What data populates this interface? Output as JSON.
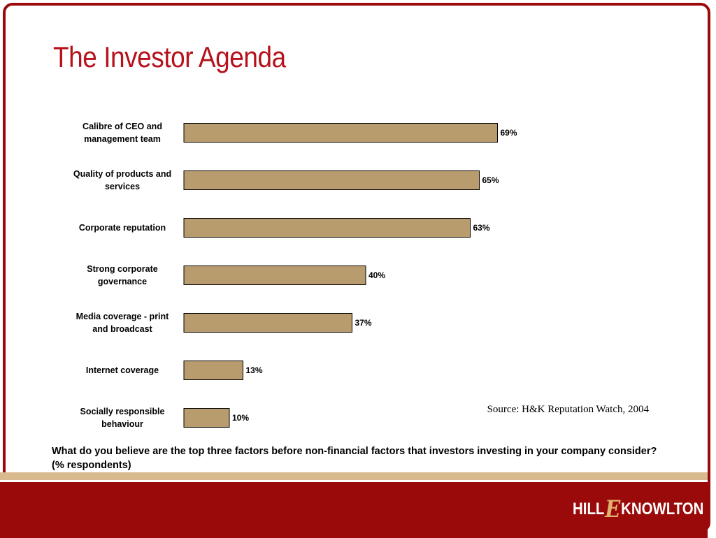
{
  "title": "The Investor Agenda",
  "source": "Source: H&K Reputation Watch, 2004",
  "question": "What do you believe are the top three factors before non-financial factors that investors investing in your company consider? (% respondents)",
  "logo": {
    "part1": "HILL",
    "part2": "E",
    "part3": "KNOWLTON"
  },
  "colors": {
    "bar": "#b89c6d",
    "bar_border": "#000000",
    "brand_red": "#9b0a0a",
    "title_red": "#b5121b",
    "stripe": "#d9b98e"
  },
  "chart_data": {
    "type": "bar",
    "orientation": "horizontal",
    "categories": [
      [
        "Calibre of CEO and",
        "management team"
      ],
      [
        "Quality of products and",
        "services"
      ],
      [
        "Corporate reputation"
      ],
      [
        "Strong corporate",
        "governance"
      ],
      [
        "Media coverage - print",
        "and broadcast"
      ],
      [
        "Internet coverage"
      ],
      [
        "Socially responsible",
        "behaviour"
      ]
    ],
    "values": [
      69,
      65,
      63,
      40,
      37,
      13,
      10
    ],
    "value_labels": [
      "69%",
      "65%",
      "63%",
      "40%",
      "37%",
      "13%",
      "10%"
    ],
    "xlim": [
      0,
      100
    ],
    "grid": false,
    "legend": "none"
  }
}
